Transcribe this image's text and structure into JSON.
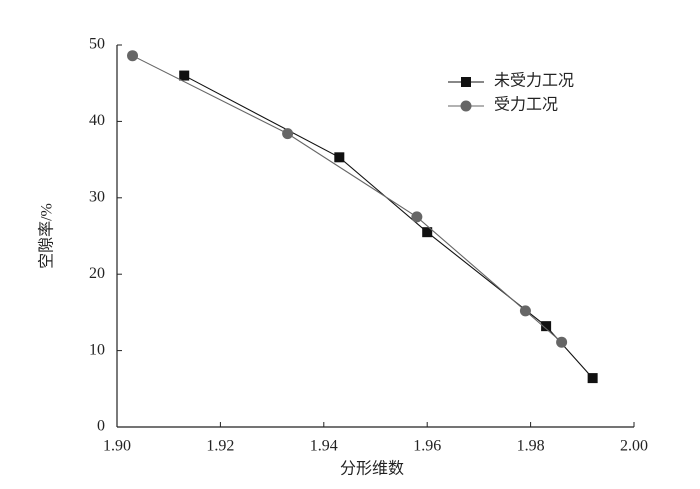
{
  "chart_data": {
    "type": "line",
    "x_label": "分形维数",
    "y_label": "空隙率/%",
    "xlim": [
      1.9,
      2.0
    ],
    "xticks": [
      {
        "value": 1.9,
        "label": "1.90"
      },
      {
        "value": 1.92,
        "label": "1.92"
      },
      {
        "value": 1.94,
        "label": "1.94"
      },
      {
        "value": 1.96,
        "label": "1.96"
      },
      {
        "value": 1.98,
        "label": "1.98"
      },
      {
        "value": 2.0,
        "label": "2.00"
      }
    ],
    "ylim": [
      0,
      50
    ],
    "yticks": [
      0,
      10,
      20,
      30,
      40,
      50
    ],
    "legend": "upper right",
    "series": [
      {
        "name": "未受力工况",
        "color": "#111111",
        "marker": "square",
        "x": [
          1.913,
          1.943,
          1.96,
          1.983,
          1.992
        ],
        "values": [
          46.0,
          35.3,
          25.5,
          13.2,
          6.4
        ]
      },
      {
        "name": "受力工况",
        "color": "#666666",
        "marker": "circle",
        "x": [
          1.903,
          1.933,
          1.958,
          1.979,
          1.986
        ],
        "values": [
          48.6,
          38.4,
          27.5,
          15.2,
          11.1
        ]
      }
    ]
  }
}
